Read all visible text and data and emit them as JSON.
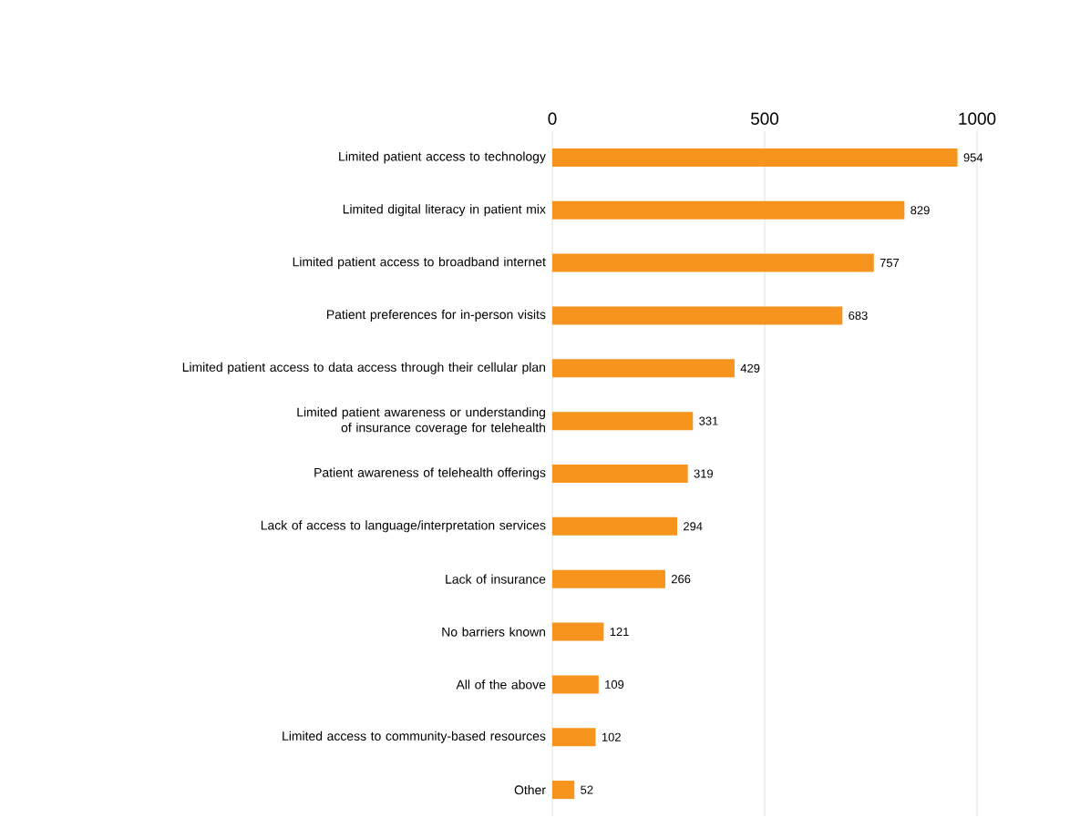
{
  "chart_data": {
    "type": "bar",
    "orientation": "horizontal",
    "categories": [
      "Limited patient access to technology",
      "Limited digital literacy in patient mix",
      "Limited patient access to broadband internet",
      "Patient preferences for in-person visits",
      "Limited patient access to data access through their cellular plan",
      "Limited patient awareness or understanding of insurance coverage for telehealth",
      "Patient awareness of telehealth offerings",
      "Lack of access to language/interpretation services",
      "Lack of insurance",
      "No barriers known",
      "All of the above",
      "Limited access to community-based resources",
      "Other"
    ],
    "values": [
      954,
      829,
      757,
      683,
      429,
      331,
      319,
      294,
      266,
      121,
      109,
      102,
      52
    ],
    "color": "#f7941d",
    "xlim": [
      0,
      1000
    ],
    "xticks": [
      0,
      500,
      1000
    ],
    "grid": "x",
    "data_labels": true
  }
}
